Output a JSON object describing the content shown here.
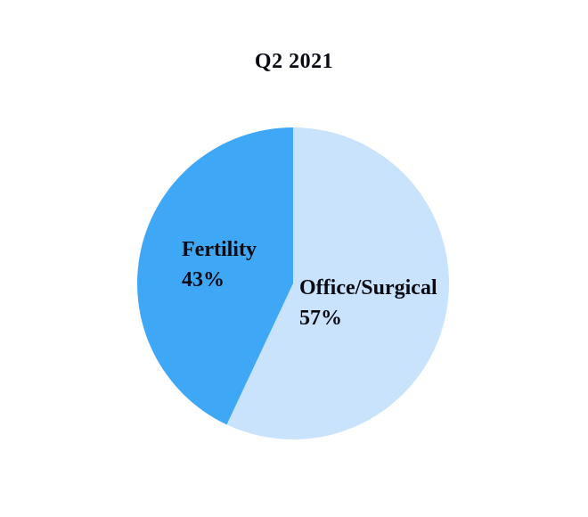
{
  "chart_data": {
    "type": "pie",
    "title": "Q2 2021",
    "slices": [
      {
        "label": "Office/Surgical",
        "value": 57,
        "pct_label": "57%",
        "color": "#C9E3FC"
      },
      {
        "label": "Fertility",
        "value": 43,
        "pct_label": "43%",
        "color": "#3EA8F6"
      }
    ],
    "start_angle": "12-o-clock",
    "direction": "clockwise",
    "legend_position": "none",
    "labels_on_chart": true,
    "background": "#FFFFFF"
  }
}
